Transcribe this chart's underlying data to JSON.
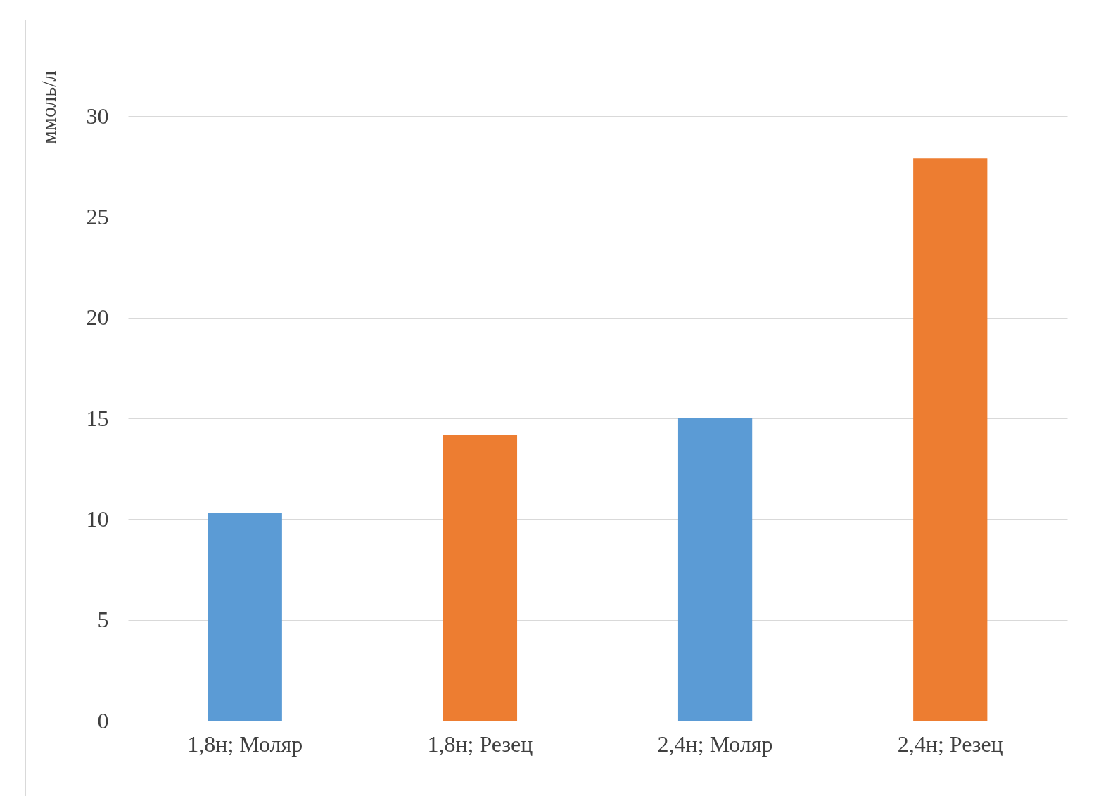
{
  "chart_data": {
    "type": "bar",
    "ylabel": "ммоль/л",
    "categories": [
      "1,8н; Моляр",
      "1,8н; Резец",
      "2,4н; Моляр",
      "2,4н; Резец"
    ],
    "values": [
      10.3,
      14.2,
      15.0,
      27.9
    ],
    "colors": [
      "#5b9bd5",
      "#ed7d31",
      "#5b9bd5",
      "#ed7d31"
    ],
    "ylim": [
      0,
      30
    ],
    "yticks": [
      0,
      5,
      10,
      15,
      20,
      25,
      30
    ],
    "grid": "y"
  }
}
